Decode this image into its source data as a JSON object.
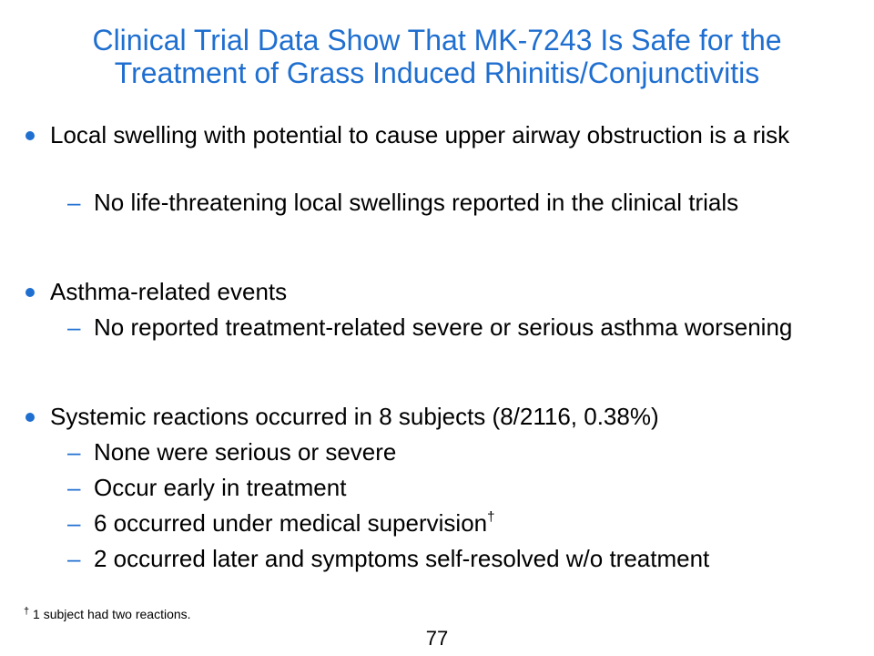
{
  "title": {
    "line1": "Clinical Trial Data Show That MK-7243 Is Safe for the",
    "line2": "Treatment of Grass Induced Rhinitis/Conjunctivitis"
  },
  "bullets": [
    {
      "text": "Local swelling with potential to cause upper airway obstruction is a risk",
      "subs": [
        "No life-threatening local swellings reported in the clinical trials"
      ]
    },
    {
      "text": "Asthma-related events",
      "subs": [
        "No reported treatment-related severe or serious asthma worsening"
      ]
    },
    {
      "text": "Systemic reactions occurred in 8 subjects (8/2116, 0.38%)",
      "subs": [
        "None were serious or severe",
        "Occur early in treatment",
        "6 occurred under medical supervision",
        "2 occurred later and symptoms self-resolved w/o treatment"
      ]
    }
  ],
  "dagger": "†",
  "footnote": {
    "mark": "†",
    "text": " 1 subject had two reactions."
  },
  "page_number": "77",
  "colors": {
    "accent": "#1F6FD0"
  }
}
